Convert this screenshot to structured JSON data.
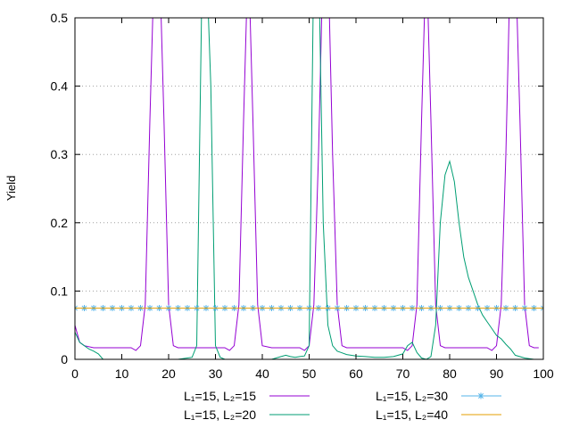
{
  "chart_data": {
    "type": "line",
    "xlabel": "",
    "ylabel": "Yield",
    "xlim": [
      0,
      100
    ],
    "ylim": [
      0,
      0.5
    ],
    "xticks": [
      "0",
      "10",
      "20",
      "30",
      "40",
      "50",
      "60",
      "70",
      "80",
      "90",
      "100"
    ],
    "yticks": [
      "0",
      "0.1",
      "0.2",
      "0.3",
      "0.4",
      "0.5"
    ],
    "grid": "horizontal-dotted",
    "legend_position": "bottom",
    "series": [
      {
        "name": "L₁=15, L₂=15",
        "color": "#9400d3",
        "style": "line",
        "x": [
          0,
          1,
          2,
          4,
          6,
          8,
          10,
          12,
          13,
          14,
          15,
          16,
          17,
          18,
          19,
          20,
          21,
          22,
          24,
          26,
          28,
          30,
          32,
          33,
          34,
          35,
          36,
          37,
          38,
          39,
          40,
          42,
          44,
          46,
          48,
          49,
          50,
          51,
          52,
          53,
          54,
          55,
          56,
          57,
          58,
          59,
          60,
          62,
          64,
          66,
          68,
          70,
          71,
          72,
          73,
          74,
          75,
          76,
          77,
          78,
          79,
          80,
          82,
          84,
          86,
          88,
          89,
          90,
          91,
          92,
          93,
          94,
          95,
          96,
          97,
          98,
          99
        ],
        "y": [
          0.05,
          0.025,
          0.02,
          0.017,
          0.017,
          0.017,
          0.017,
          0.017,
          0.013,
          0.02,
          0.08,
          0.35,
          0.6,
          0.6,
          0.35,
          0.08,
          0.02,
          0.017,
          0.017,
          0.017,
          0.017,
          0.017,
          0.017,
          0.013,
          0.02,
          0.08,
          0.35,
          0.6,
          0.35,
          0.08,
          0.02,
          0.017,
          0.017,
          0.017,
          0.017,
          0.013,
          0.02,
          0.08,
          0.3,
          0.6,
          0.6,
          0.3,
          0.08,
          0.02,
          0.017,
          0.017,
          0.017,
          0.017,
          0.017,
          0.017,
          0.017,
          0.017,
          0.013,
          0.02,
          0.08,
          0.35,
          0.6,
          0.35,
          0.08,
          0.02,
          0.017,
          0.017,
          0.017,
          0.017,
          0.017,
          0.017,
          0.013,
          0.02,
          0.08,
          0.3,
          0.6,
          0.6,
          0.35,
          0.08,
          0.02,
          0.017,
          0.017
        ]
      },
      {
        "name": "L₁=15, L₂=20",
        "color": "#009e73",
        "style": "line",
        "x": [
          0,
          1,
          2,
          3,
          4,
          5,
          6,
          8,
          10,
          12,
          14,
          16,
          18,
          20,
          22,
          24,
          25,
          26,
          27,
          28,
          29,
          30,
          31,
          32,
          34,
          36,
          38,
          40,
          42,
          44,
          45,
          46,
          47,
          48,
          49,
          50,
          51,
          52,
          53,
          54,
          55,
          56,
          58,
          60,
          62,
          64,
          66,
          68,
          70,
          71,
          72,
          73,
          74,
          75,
          76,
          77,
          78,
          79,
          80,
          81,
          82,
          83,
          84,
          85,
          86,
          87,
          88,
          89,
          90,
          91,
          92,
          93,
          94,
          96,
          98,
          99
        ],
        "y": [
          0.04,
          0.025,
          0.02,
          0.015,
          0.012,
          0.008,
          0.0,
          0.0,
          0.0,
          0.0,
          0.0,
          0.0,
          0.0,
          0.0,
          0.0,
          0.002,
          0.003,
          0.02,
          0.5,
          0.6,
          0.4,
          0.02,
          0.003,
          0.0,
          0.0,
          0.0,
          0.0,
          0.0,
          0.0,
          0.004,
          0.006,
          0.004,
          0.003,
          0.004,
          0.005,
          0.02,
          0.6,
          0.6,
          0.2,
          0.05,
          0.02,
          0.012,
          0.007,
          0.005,
          0.004,
          0.003,
          0.003,
          0.004,
          0.008,
          0.02,
          0.025,
          0.01,
          0.002,
          0.0,
          0.004,
          0.05,
          0.2,
          0.27,
          0.29,
          0.26,
          0.2,
          0.15,
          0.12,
          0.1,
          0.08,
          0.065,
          0.055,
          0.045,
          0.035,
          0.03,
          0.022,
          0.015,
          0.006,
          0.002,
          0.0,
          0.0
        ]
      },
      {
        "name": "L₁=15, L₂=30",
        "color": "#56b4e9",
        "style": "points",
        "x": [
          0,
          2,
          4,
          6,
          8,
          10,
          12,
          14,
          16,
          18,
          20,
          22,
          24,
          26,
          28,
          30,
          32,
          34,
          36,
          38,
          40,
          42,
          44,
          46,
          48,
          50,
          52,
          54,
          56,
          58,
          60,
          62,
          64,
          66,
          68,
          70,
          72,
          74,
          76,
          78,
          80,
          82,
          84,
          86,
          88,
          90,
          92,
          94,
          96,
          98,
          100
        ],
        "y": [
          0.075,
          0.075,
          0.075,
          0.075,
          0.075,
          0.075,
          0.075,
          0.075,
          0.075,
          0.075,
          0.075,
          0.075,
          0.075,
          0.075,
          0.075,
          0.075,
          0.075,
          0.075,
          0.075,
          0.075,
          0.075,
          0.075,
          0.075,
          0.075,
          0.075,
          0.075,
          0.075,
          0.075,
          0.075,
          0.075,
          0.075,
          0.075,
          0.075,
          0.075,
          0.075,
          0.075,
          0.075,
          0.075,
          0.075,
          0.075,
          0.075,
          0.075,
          0.075,
          0.075,
          0.075,
          0.075,
          0.075,
          0.075,
          0.075,
          0.075,
          0.075
        ]
      },
      {
        "name": "L₁=15, L₂=40",
        "color": "#e69f00",
        "style": "line",
        "x": [
          0,
          100
        ],
        "y": [
          0.075,
          0.075
        ]
      }
    ]
  }
}
